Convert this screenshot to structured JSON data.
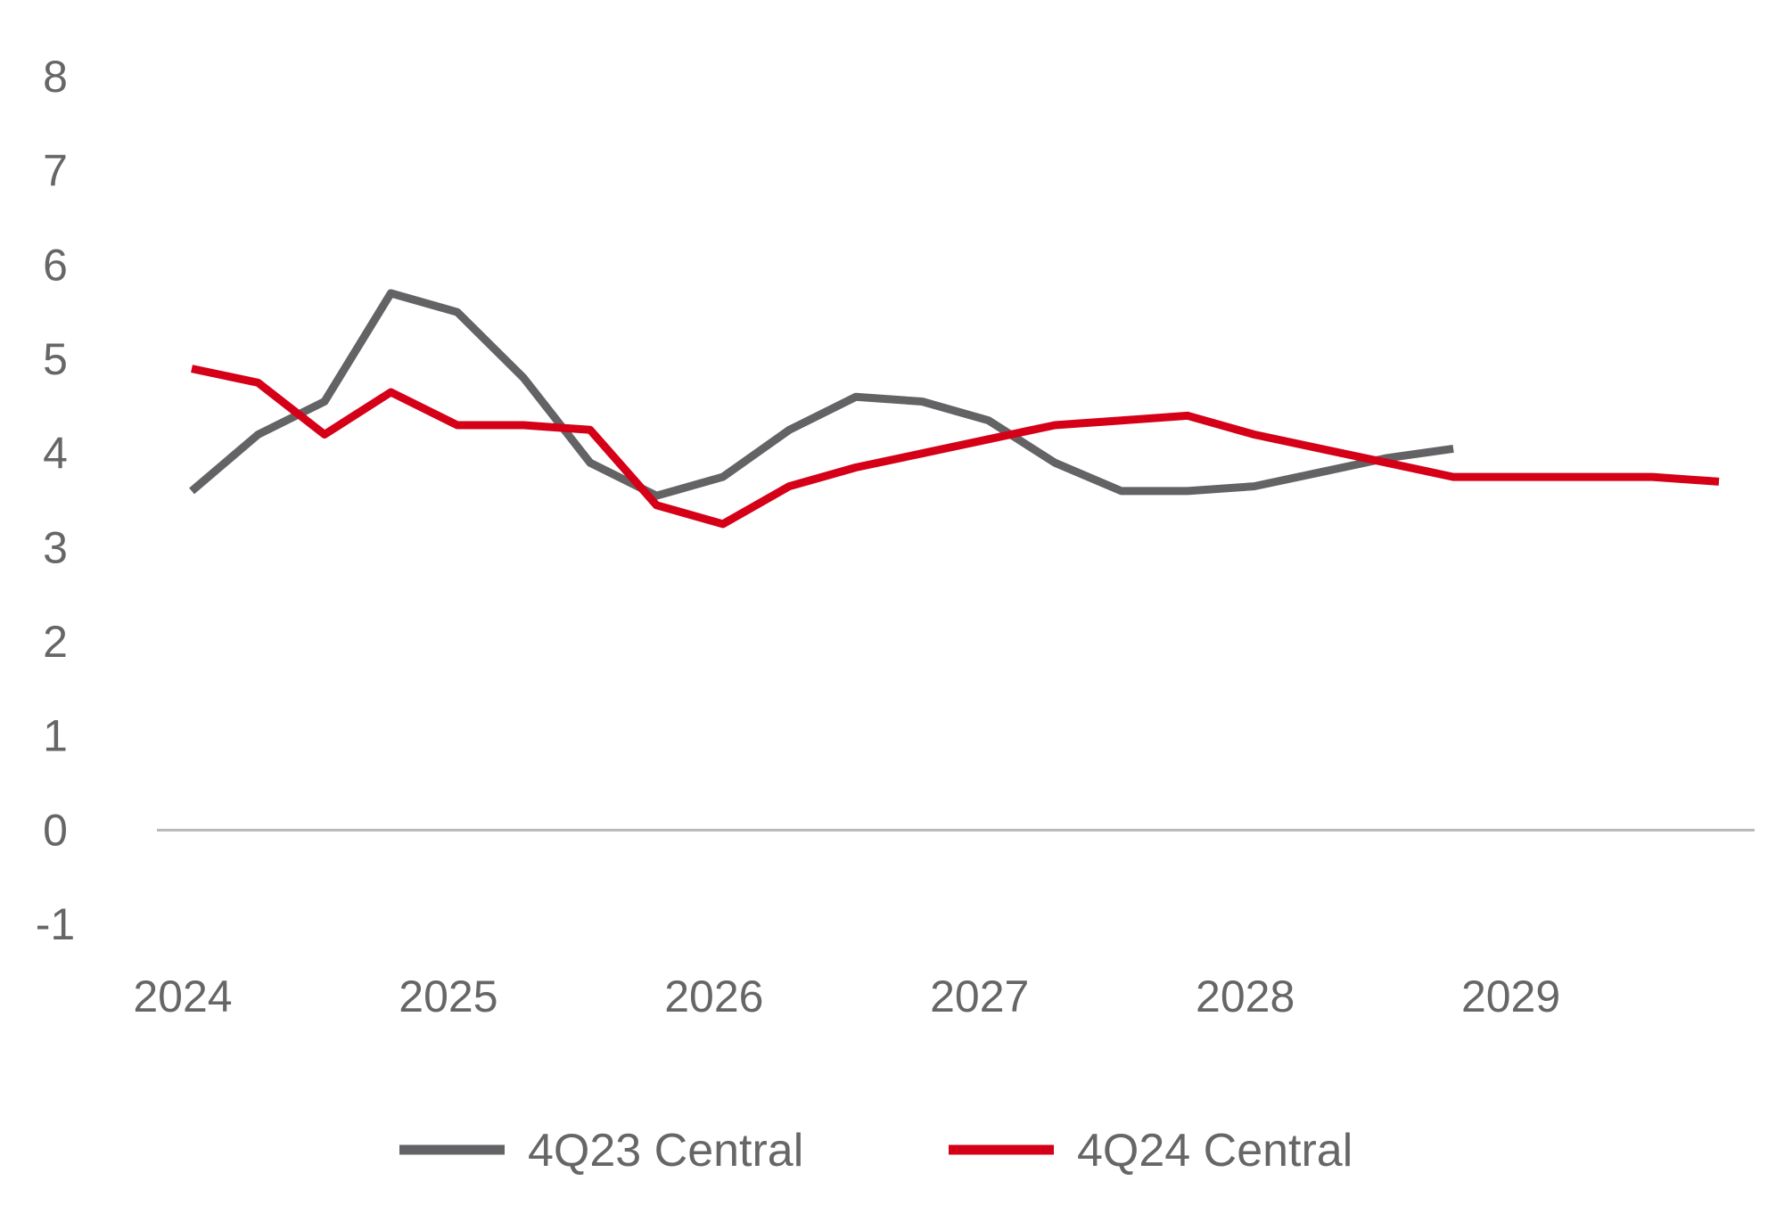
{
  "chart_data": {
    "type": "line",
    "title": "",
    "xlabel": "",
    "ylabel": "",
    "ylim": [
      -1,
      8
    ],
    "yticks": [
      "8",
      "7",
      "6",
      "5",
      "4",
      "3",
      "2",
      "1",
      "0",
      "-1"
    ],
    "ytick_values": [
      8,
      7,
      6,
      5,
      4,
      3,
      2,
      1,
      0,
      -1
    ],
    "xticks": [
      "2024",
      "2025",
      "2026",
      "2027",
      "2028",
      "2029"
    ],
    "xtick_values": [
      2024,
      2025,
      2026,
      2027,
      2028,
      2029
    ],
    "x": [
      2024.0,
      2024.25,
      2024.5,
      2024.75,
      2025.0,
      2025.25,
      2025.5,
      2025.75,
      2026.0,
      2026.25,
      2026.5,
      2026.75,
      2027.0,
      2027.25,
      2027.5,
      2027.75,
      2028.0,
      2028.25,
      2028.5,
      2028.75,
      2029.0,
      2029.25,
      2029.5,
      2029.75
    ],
    "series": [
      {
        "name": "4Q23 Central",
        "color": "#636366",
        "values": [
          3.6,
          4.2,
          4.55,
          5.7,
          5.5,
          4.8,
          3.9,
          3.55,
          3.75,
          4.25,
          4.6,
          4.55,
          4.35,
          3.9,
          3.6,
          3.6,
          3.65,
          3.8,
          3.95,
          4.05,
          null,
          null,
          null,
          null
        ]
      },
      {
        "name": "4Q24 Central",
        "color": "#d50018",
        "values": [
          4.9,
          4.75,
          4.2,
          4.65,
          4.3,
          4.3,
          4.25,
          3.45,
          3.25,
          3.65,
          3.85,
          4.0,
          4.15,
          4.3,
          4.35,
          4.4,
          4.2,
          4.05,
          3.9,
          3.75,
          3.75,
          3.75,
          3.75,
          3.7
        ]
      }
    ],
    "zero_line": 0,
    "grid": false,
    "legend": "bottom-center"
  }
}
